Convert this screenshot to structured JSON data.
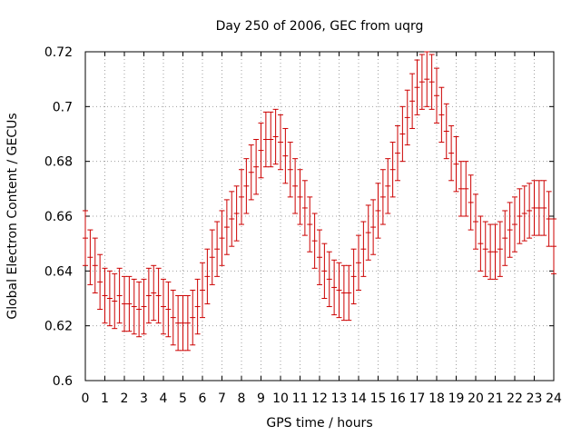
{
  "chart_data": {
    "type": "scatter",
    "style": "errorbars",
    "title": "Day 250 of 2006, GEC from uqrg",
    "xlabel": "GPS time / hours",
    "ylabel": "Global Electron Content / GECUs",
    "xlim": [
      0,
      24
    ],
    "ylim": [
      0.6,
      0.72
    ],
    "xticks": [
      0,
      1,
      2,
      3,
      4,
      5,
      6,
      7,
      8,
      9,
      10,
      11,
      12,
      13,
      14,
      15,
      16,
      17,
      18,
      19,
      20,
      21,
      22,
      23,
      24
    ],
    "xtick_labels": [
      "0",
      "1",
      "2",
      "3",
      "4",
      "5",
      "6",
      "7",
      "8",
      "9",
      "10",
      "11",
      "12",
      "13",
      "14",
      "15",
      "16",
      "17",
      "18",
      "19",
      "20",
      "21",
      "22",
      "23",
      "24"
    ],
    "yticks": [
      0.6,
      0.62,
      0.64,
      0.66,
      0.68,
      0.7,
      0.72
    ],
    "ytick_labels": [
      "0.6",
      "0.62",
      "0.64",
      "0.66",
      "0.68",
      "0.7",
      "0.72"
    ],
    "grid": true,
    "color": "#cc0000",
    "error": 0.01,
    "x": [
      0,
      0.25,
      0.5,
      0.75,
      1,
      1.25,
      1.5,
      1.75,
      2,
      2.25,
      2.5,
      2.75,
      3,
      3.25,
      3.5,
      3.75,
      4,
      4.25,
      4.5,
      4.75,
      5,
      5.25,
      5.5,
      5.75,
      6,
      6.25,
      6.5,
      6.75,
      7,
      7.25,
      7.5,
      7.75,
      8,
      8.25,
      8.5,
      8.75,
      9,
      9.25,
      9.5,
      9.75,
      10,
      10.25,
      10.5,
      10.75,
      11,
      11.25,
      11.5,
      11.75,
      12,
      12.25,
      12.5,
      12.75,
      13,
      13.25,
      13.5,
      13.75,
      14,
      14.25,
      14.5,
      14.75,
      15,
      15.25,
      15.5,
      15.75,
      16,
      16.25,
      16.5,
      16.75,
      17,
      17.25,
      17.5,
      17.75,
      18,
      18.25,
      18.5,
      18.75,
      19,
      19.25,
      19.5,
      19.75,
      20,
      20.25,
      20.5,
      20.75,
      21,
      21.25,
      21.5,
      21.75,
      22,
      22.25,
      22.5,
      22.75,
      23,
      23.25,
      23.5,
      23.75,
      24
    ],
    "values": [
      0.652,
      0.645,
      0.642,
      0.636,
      0.631,
      0.63,
      0.629,
      0.631,
      0.628,
      0.628,
      0.627,
      0.626,
      0.627,
      0.631,
      0.632,
      0.631,
      0.627,
      0.626,
      0.623,
      0.621,
      0.621,
      0.621,
      0.623,
      0.627,
      0.633,
      0.638,
      0.645,
      0.648,
      0.652,
      0.656,
      0.659,
      0.661,
      0.667,
      0.671,
      0.676,
      0.678,
      0.684,
      0.688,
      0.688,
      0.689,
      0.687,
      0.682,
      0.677,
      0.671,
      0.667,
      0.663,
      0.657,
      0.651,
      0.645,
      0.64,
      0.637,
      0.634,
      0.633,
      0.632,
      0.632,
      0.638,
      0.643,
      0.648,
      0.654,
      0.656,
      0.662,
      0.667,
      0.671,
      0.677,
      0.683,
      0.69,
      0.696,
      0.702,
      0.707,
      0.709,
      0.71,
      0.709,
      0.704,
      0.697,
      0.691,
      0.683,
      0.679,
      0.67,
      0.67,
      0.665,
      0.658,
      0.65,
      0.648,
      0.647,
      0.647,
      0.648,
      0.652,
      0.655,
      0.657,
      0.66,
      0.661,
      0.662,
      0.663,
      0.663,
      0.663,
      0.659,
      0.649
    ]
  }
}
